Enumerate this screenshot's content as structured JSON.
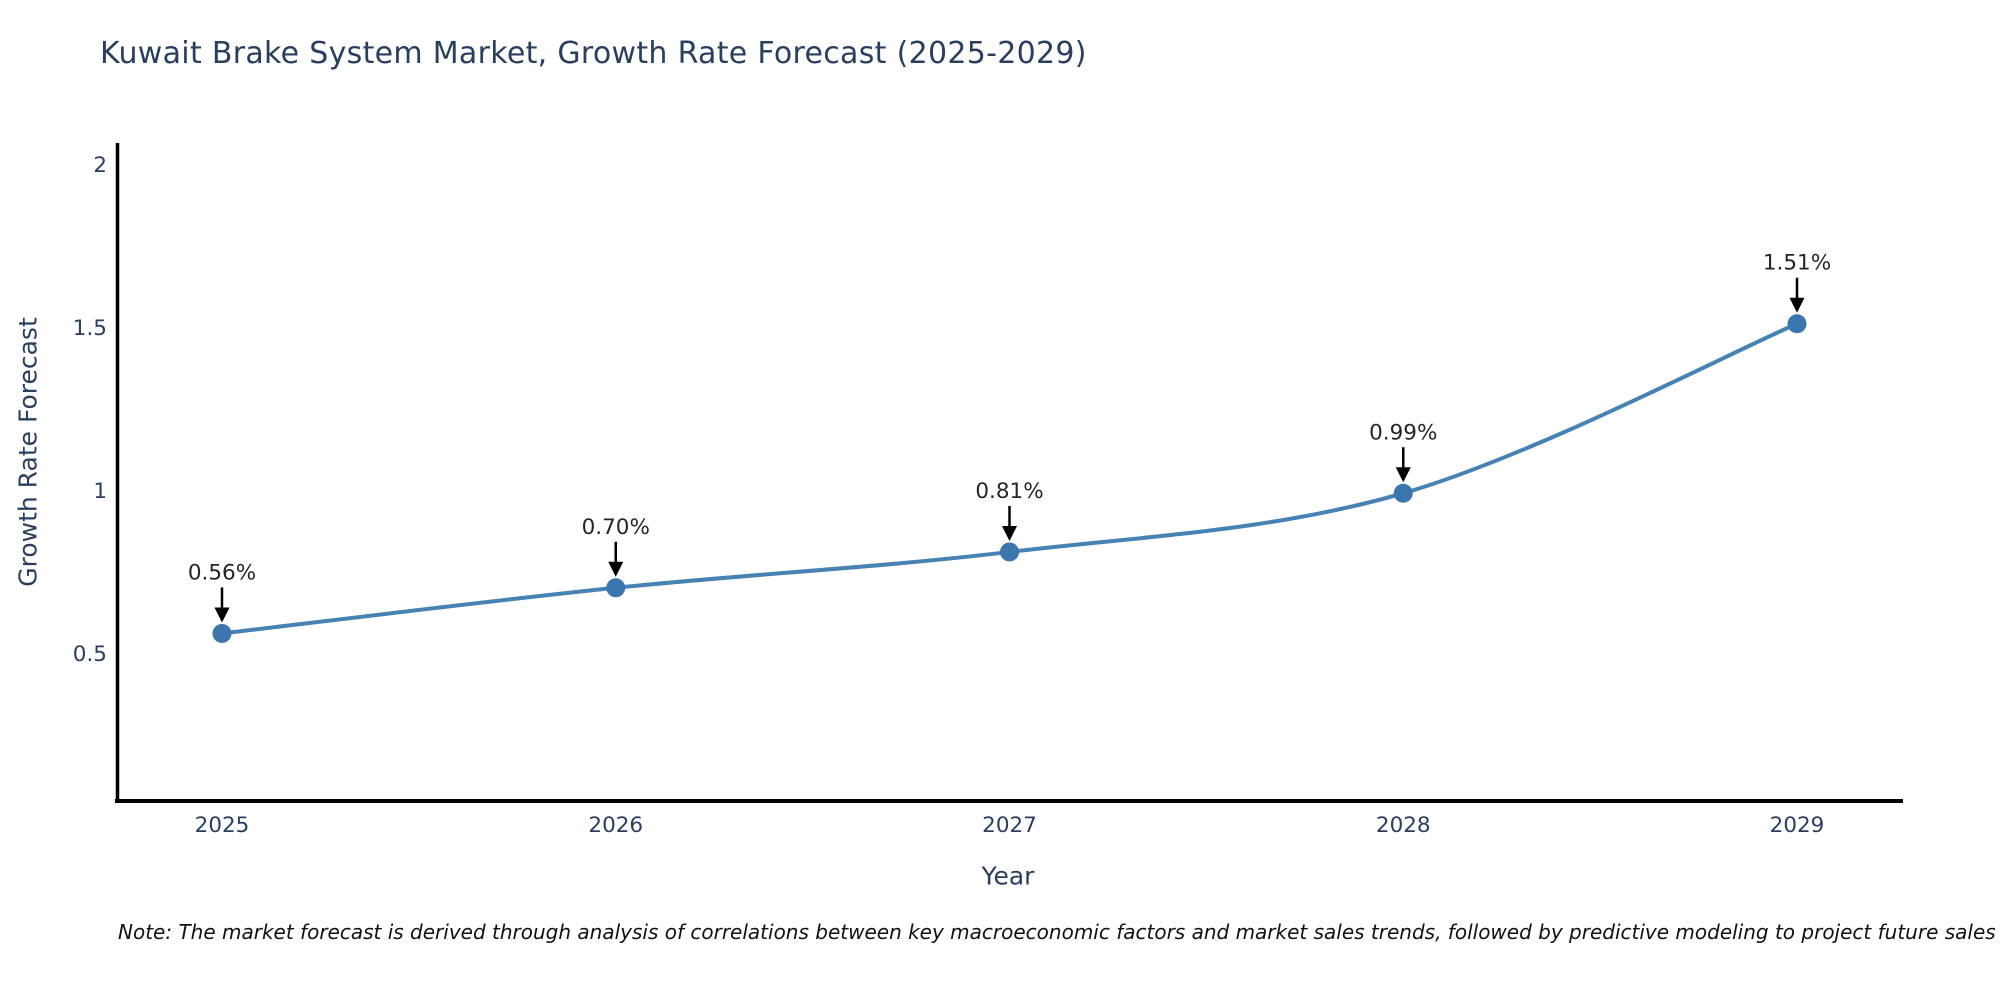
{
  "note": "Note: The market forecast is derived through analysis of correlations between key macroeconomic factors and market sales trends, followed by predictive modeling to project future sales",
  "chart_data": {
    "type": "line",
    "title": "Kuwait Brake System Market, Growth Rate Forecast (2025-2029)",
    "xlabel": "Year",
    "ylabel": "Growth Rate Forecast",
    "x": [
      2025,
      2026,
      2027,
      2028,
      2029
    ],
    "values": [
      0.56,
      0.7,
      0.81,
      0.99,
      1.51
    ],
    "point_labels": [
      "0.56%",
      "0.70%",
      "0.81%",
      "0.99%",
      "1.51%"
    ],
    "yticks": [
      0.5,
      1,
      1.5,
      2
    ],
    "ylim": [
      0.03,
      2.06
    ],
    "grid": false,
    "legend_position": "none",
    "line_shape": "spline",
    "marker": "circle",
    "annotation_arrows": true,
    "colors": {
      "line": "#4682b4",
      "marker": "#3c76ae",
      "axis": "#000000",
      "tick_text": "#2a3f5f",
      "title_text": "#2a3f5f",
      "annotation_text": "#262626",
      "arrow": "#000000",
      "background": "#ffffff"
    }
  }
}
